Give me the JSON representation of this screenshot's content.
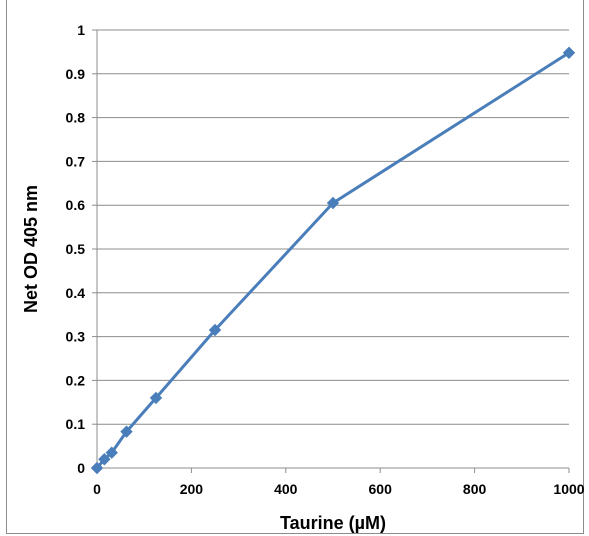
{
  "chart_data": {
    "type": "line",
    "title": "",
    "xlabel": "Taurine (µM)",
    "ylabel": "Net OD 405 nm",
    "xlim": [
      0,
      1000
    ],
    "ylim": [
      0,
      1
    ],
    "x_ticks": [
      "0",
      "200",
      "400",
      "600",
      "800",
      "1000"
    ],
    "y_ticks": [
      "0",
      "0.1",
      "0.2",
      "0.3",
      "0.4",
      "0.5",
      "0.6",
      "0.7",
      "0.8",
      "0.9",
      "1"
    ],
    "grid": "horizontal",
    "legend": "none",
    "series": [
      {
        "color": "#4a7ebb",
        "marker": "diamond",
        "points": [
          {
            "x": 0,
            "y": 0.0
          },
          {
            "x": 15.6,
            "y": 0.02
          },
          {
            "x": 31.25,
            "y": 0.035
          },
          {
            "x": 62.5,
            "y": 0.083
          },
          {
            "x": 125,
            "y": 0.16
          },
          {
            "x": 250,
            "y": 0.315
          },
          {
            "x": 500,
            "y": 0.605
          },
          {
            "x": 1000,
            "y": 0.948
          }
        ]
      }
    ]
  }
}
